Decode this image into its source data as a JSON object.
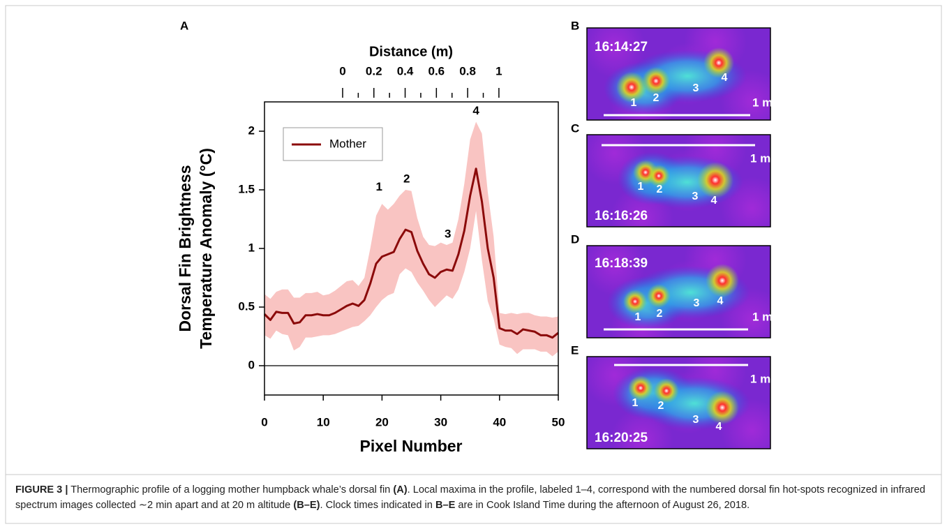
{
  "chart_data": {
    "type": "line",
    "panel_label": "A",
    "x_label": "Pixel Number",
    "y_label": [
      "Dorsal Fin Brightness",
      "Temperature Anomaly (°C)"
    ],
    "x2_label": "Distance (m)",
    "x": [
      0,
      1,
      2,
      3,
      4,
      5,
      6,
      7,
      8,
      9,
      10,
      11,
      12,
      13,
      14,
      15,
      16,
      17,
      18,
      19,
      20,
      21,
      22,
      23,
      24,
      25,
      26,
      27,
      28,
      29,
      30,
      31,
      32,
      33,
      34,
      35,
      36,
      37,
      38,
      39,
      40,
      41,
      42,
      43,
      44,
      45,
      46,
      47,
      48,
      49,
      50
    ],
    "series": [
      {
        "name": "Mother",
        "color": "#8b0a0a",
        "band_color": "#f9c4c2",
        "values": [
          0.44,
          0.39,
          0.46,
          0.45,
          0.45,
          0.36,
          0.37,
          0.43,
          0.43,
          0.44,
          0.43,
          0.43,
          0.45,
          0.48,
          0.51,
          0.53,
          0.51,
          0.56,
          0.7,
          0.87,
          0.93,
          0.95,
          0.97,
          1.08,
          1.16,
          1.14,
          0.98,
          0.87,
          0.78,
          0.75,
          0.8,
          0.82,
          0.81,
          0.95,
          1.15,
          1.45,
          1.68,
          1.4,
          1.0,
          0.75,
          0.32,
          0.3,
          0.3,
          0.27,
          0.31,
          0.3,
          0.29,
          0.26,
          0.26,
          0.24,
          0.28
        ],
        "upper": [
          0.61,
          0.57,
          0.63,
          0.65,
          0.65,
          0.58,
          0.58,
          0.62,
          0.62,
          0.63,
          0.6,
          0.61,
          0.64,
          0.68,
          0.72,
          0.73,
          0.68,
          0.75,
          1.0,
          1.28,
          1.38,
          1.33,
          1.38,
          1.45,
          1.5,
          1.49,
          1.26,
          1.1,
          1.03,
          1.02,
          1.05,
          1.03,
          1.05,
          1.25,
          1.55,
          1.93,
          2.08,
          1.98,
          1.48,
          1.1,
          0.45,
          0.44,
          0.45,
          0.44,
          0.45,
          0.45,
          0.43,
          0.42,
          0.42,
          0.41,
          0.42
        ],
        "lower": [
          0.26,
          0.23,
          0.3,
          0.27,
          0.26,
          0.13,
          0.16,
          0.24,
          0.24,
          0.25,
          0.26,
          0.26,
          0.27,
          0.29,
          0.31,
          0.33,
          0.34,
          0.38,
          0.43,
          0.5,
          0.56,
          0.6,
          0.62,
          0.78,
          0.83,
          0.8,
          0.71,
          0.64,
          0.56,
          0.5,
          0.55,
          0.6,
          0.57,
          0.65,
          0.8,
          1.0,
          1.32,
          0.9,
          0.55,
          0.4,
          0.18,
          0.16,
          0.15,
          0.1,
          0.14,
          0.14,
          0.14,
          0.12,
          0.12,
          0.08,
          0.12
        ]
      }
    ],
    "annotations": [
      {
        "text": "1",
        "x": 19.5,
        "y": 1.52
      },
      {
        "text": "2",
        "x": 24.2,
        "y": 1.59
      },
      {
        "text": "3",
        "x": 31.2,
        "y": 1.12
      },
      {
        "text": "4",
        "x": 36,
        "y": 2.17
      }
    ],
    "xlim": [
      0,
      50
    ],
    "xticks": [
      0,
      10,
      20,
      30,
      40,
      50
    ],
    "ylim": [
      -0.25,
      2.25
    ],
    "yticks": [
      0,
      0.5,
      1,
      1.5,
      2
    ],
    "x2lim": [
      -0.5,
      1.38
    ],
    "x2ticks": [
      0,
      0.2,
      0.4,
      0.6,
      0.8,
      1
    ],
    "x2minor_ticks": [
      0.1,
      0.3,
      0.5,
      0.7,
      0.9
    ],
    "zero_line": 0,
    "legend": "upper-left"
  },
  "panels": [
    {
      "letter": "B",
      "time": "16:14:27",
      "scale": "1 m",
      "spots": [
        "1",
        "2",
        "3",
        "4"
      ]
    },
    {
      "letter": "C",
      "time": "16:16:26",
      "scale": "1 m",
      "spots": [
        "1",
        "2",
        "3",
        "4"
      ]
    },
    {
      "letter": "D",
      "time": "16:18:39",
      "scale": "1 m",
      "spots": [
        "1",
        "2",
        "3",
        "4"
      ]
    },
    {
      "letter": "E",
      "time": "16:20:25",
      "scale": "1 m",
      "spots": [
        "1",
        "2",
        "3",
        "4"
      ]
    }
  ],
  "caption": [
    {
      "text": "FIGURE 3 |",
      "bold": true
    },
    {
      "text": " Thermographic profile of a logging mother humpback whale’s dorsal fin ",
      "bold": false
    },
    {
      "text": "(A)",
      "bold": true
    },
    {
      "text": ". Local maxima in the profile, labeled 1–4, correspond with the numbered dorsal fin hot-spots recognized in infrared spectrum images collected ∼2 min apart and at 20 m altitude ",
      "bold": false
    },
    {
      "text": "(B–E)",
      "bold": true
    },
    {
      "text": ". Clock times indicated in ",
      "bold": false
    },
    {
      "text": "B–E",
      "bold": true
    },
    {
      "text": " are in Cook Island Time during the afternoon of August 26, 2018.",
      "bold": false
    }
  ]
}
